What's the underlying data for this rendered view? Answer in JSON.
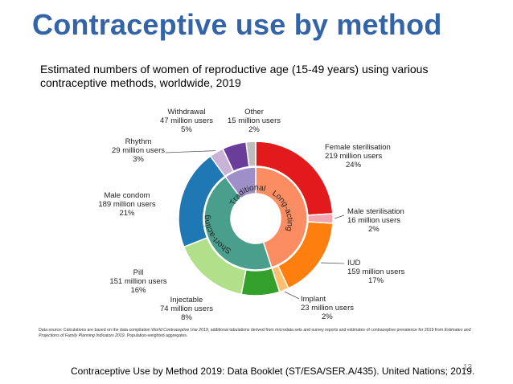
{
  "slide": {
    "title": "Contraceptive use by method",
    "subtitle": "Estimated numbers of women of reproductive age (15-49 years) using various contraceptive methods, worldwide, 2019",
    "footnote_prefix": "Data source: Calculations are based on the data compilation ",
    "footnote_title1": "World Contraceptive Use 2019",
    "footnote_middle": ", additional tabulations derived from microdata sets and survey reports and estimates of contraceptive prevalence for 2019 from ",
    "footnote_title2": "Estimates and Projections of Family Planning Indicators 2019",
    "footnote_suffix": ". Population-weighted aggregates.",
    "citation": "Contraceptive Use by Method 2019: Data Booklet (ST/ESA/SER.A/435). United Nations; 2019.",
    "slide_number": "13"
  },
  "chart_data": {
    "type": "pie",
    "subtype": "donut-nested",
    "outer_series": [
      {
        "label": "Female sterilisation",
        "users": "219 million users",
        "pct": "24%",
        "value": 24,
        "color": "#e31a1c"
      },
      {
        "label": "Male sterilisation",
        "users": "16 million users",
        "pct": "2%",
        "value": 2,
        "color": "#f4a6b0"
      },
      {
        "label": "IUD",
        "users": "159 million users",
        "pct": "17%",
        "value": 17,
        "color": "#ff7f0e"
      },
      {
        "label": "Implant",
        "users": "23 million users",
        "pct": "2%",
        "value": 2,
        "color": "#fdbf6f"
      },
      {
        "label": "Injectable",
        "users": "74 million users",
        "pct": "8%",
        "value": 8,
        "color": "#33a02c"
      },
      {
        "label": "Pill",
        "users": "151 million users",
        "pct": "16%",
        "value": 16,
        "color": "#b2df8a"
      },
      {
        "label": "Male condom",
        "users": "189 million users",
        "pct": "21%",
        "value": 21,
        "color": "#1f78b4"
      },
      {
        "label": "Rhythm",
        "users": "29 million users",
        "pct": "3%",
        "value": 3,
        "color": "#cab2d6"
      },
      {
        "label": "Withdrawal",
        "users": "47 million users",
        "pct": "5%",
        "value": 5,
        "color": "#6a3d9a"
      },
      {
        "label": "Other",
        "users": "15 million users",
        "pct": "2%",
        "value": 2,
        "color": "#bdbdbd"
      }
    ],
    "inner_series": [
      {
        "label": "Long-acting",
        "value": 45,
        "color": "#fc8d62"
      },
      {
        "label": "Short-acting",
        "value": 45,
        "color": "#4a9e8c"
      },
      {
        "label": "Traditional",
        "value": 10,
        "color": "#9e8fc9"
      }
    ]
  }
}
